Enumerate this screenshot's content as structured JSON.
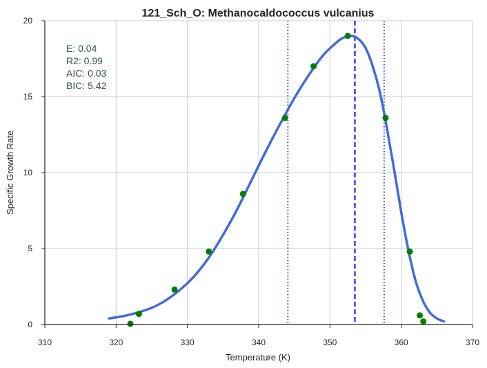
{
  "chart_data": {
    "type": "line",
    "title": "121_Sch_O: Methanocaldococcus vulcanius",
    "xlabel": "Temperature (K)",
    "ylabel": "Specific Growth Rate",
    "xlim": [
      310,
      370
    ],
    "ylim": [
      0,
      20
    ],
    "xticks": [
      "310",
      "320",
      "330",
      "340",
      "350",
      "360",
      "370"
    ],
    "yticks": [
      "0",
      "5",
      "10",
      "15",
      "20"
    ],
    "grid": true,
    "annotations": [
      "E:  0.04",
      "R2:  0.99",
      "AIC: 0.03",
      "BIC: 5.42"
    ],
    "observed": {
      "color": "#008000",
      "x": [
        322.0,
        323.2,
        328.2,
        333.0,
        337.8,
        343.7,
        347.7,
        352.5,
        357.8,
        361.2,
        362.6,
        363.1
      ],
      "y": [
        0.05,
        0.7,
        2.3,
        4.8,
        8.6,
        13.6,
        17.0,
        19.0,
        13.6,
        4.8,
        0.6,
        0.2
      ]
    },
    "fit": {
      "color": "#4169e1",
      "x": [
        319,
        321,
        323,
        325,
        327,
        329,
        331,
        333,
        335,
        337,
        339,
        341,
        343,
        345,
        347,
        349,
        351,
        352,
        353,
        354,
        355,
        356,
        357,
        358,
        359,
        360,
        361,
        362,
        363,
        364,
        365,
        366
      ],
      "y": [
        0.4,
        0.55,
        0.78,
        1.1,
        1.6,
        2.3,
        3.2,
        4.4,
        5.9,
        7.6,
        9.5,
        11.4,
        13.2,
        14.9,
        16.4,
        17.7,
        18.6,
        18.9,
        19.0,
        18.8,
        18.2,
        17.0,
        15.3,
        12.9,
        10.2,
        7.4,
        4.9,
        2.9,
        1.6,
        0.8,
        0.4,
        0.2
      ]
    },
    "vlines": [
      {
        "x": 353.5,
        "style": "dashed",
        "color": "#0000ff"
      },
      {
        "x": 344.1,
        "style": "dotted",
        "color": "#0000ff"
      },
      {
        "x": 357.6,
        "style": "dotted",
        "color": "#0000ff"
      }
    ]
  }
}
